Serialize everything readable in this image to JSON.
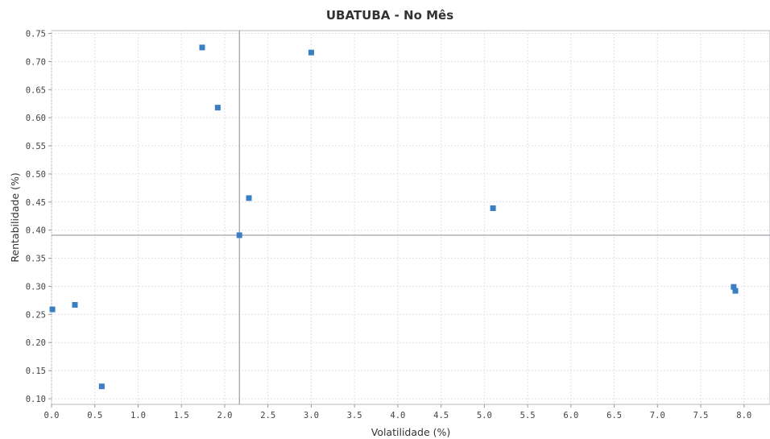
{
  "chart_data": {
    "type": "scatter",
    "title": "UBATUBA - No Mês",
    "xlabel": "Volatilidade (%)",
    "ylabel": "Rentabilidade (%)",
    "xlim": [
      0.0,
      8.3
    ],
    "ylim": [
      0.09,
      0.755
    ],
    "xticks": [
      "0.0",
      "0.5",
      "1.0",
      "1.5",
      "2.0",
      "2.5",
      "3.0",
      "3.5",
      "4.0",
      "4.5",
      "5.0",
      "5.5",
      "6.0",
      "6.5",
      "7.0",
      "7.5",
      "8.0"
    ],
    "yticks": [
      "0.10",
      "0.15",
      "0.20",
      "0.25",
      "0.30",
      "0.35",
      "0.40",
      "0.45",
      "0.50",
      "0.55",
      "0.60",
      "0.65",
      "0.70",
      "0.75"
    ],
    "grid": true,
    "reference_lines": {
      "x": 2.17,
      "y": 0.391
    },
    "colors": {
      "points": "#3a7fc4",
      "reference": "#8b8b95",
      "grid": "#e1e1ea"
    },
    "points": [
      {
        "x": 0.01,
        "y": 0.259
      },
      {
        "x": 0.27,
        "y": 0.267
      },
      {
        "x": 0.58,
        "y": 0.122
      },
      {
        "x": 1.74,
        "y": 0.725
      },
      {
        "x": 1.92,
        "y": 0.618
      },
      {
        "x": 2.17,
        "y": 0.391
      },
      {
        "x": 2.28,
        "y": 0.457
      },
      {
        "x": 3.0,
        "y": 0.716
      },
      {
        "x": 5.1,
        "y": 0.439
      },
      {
        "x": 7.88,
        "y": 0.299
      },
      {
        "x": 7.9,
        "y": 0.292
      }
    ]
  }
}
